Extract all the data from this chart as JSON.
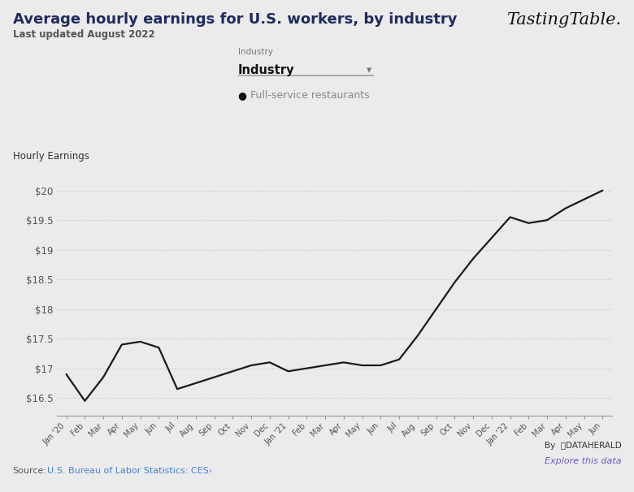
{
  "title": "Average hourly earnings for U.S. workers, by industry",
  "subtitle": "Last updated August 2022",
  "branding": "TastingTable.",
  "ylabel": "Hourly Earnings",
  "legend_label": "Full-service restaurants",
  "source_text": "Source:",
  "source_link": "U.S. Bureau of Labor Statistics: CES›",
  "industry_label": "Industry",
  "industry_value": "Industry",
  "background_color": "#ebebeb",
  "line_color": "#1a1a1a",
  "grid_color": "#c8c8c8",
  "x_labels": [
    "Jan '20",
    "Feb",
    "Mar",
    "Apr",
    "May",
    "Jun",
    "Jul",
    "Aug",
    "Sep",
    "Oct",
    "Nov",
    "Dec",
    "Jan '21",
    "Feb",
    "Mar",
    "Apr",
    "May",
    "Jun",
    "Jul",
    "Aug",
    "Sep",
    "Oct",
    "Nov",
    "Dec",
    "Jan '22",
    "Feb",
    "Mar",
    "Apr",
    "May",
    "Jun"
  ],
  "y_values": [
    16.9,
    16.45,
    16.85,
    17.4,
    17.45,
    17.35,
    16.65,
    16.75,
    16.85,
    16.95,
    17.05,
    17.1,
    16.95,
    17.0,
    17.05,
    17.1,
    17.05,
    17.05,
    17.15,
    17.55,
    18.0,
    18.45,
    18.85,
    19.2,
    19.55,
    19.45,
    19.5,
    19.7,
    19.85,
    20.0
  ],
  "ylim": [
    16.2,
    20.35
  ],
  "yticks": [
    16.5,
    17.0,
    17.5,
    18.0,
    18.5,
    19.0,
    19.5,
    20.0
  ],
  "ytick_labels": [
    "$16.5",
    "$17",
    "$17.5",
    "$18",
    "$18.5",
    "$19",
    "$19.5",
    "$20"
  ],
  "title_color": "#1e2b5e",
  "subtitle_color": "#3a3a3a",
  "tick_color": "#555555",
  "legend_text_color": "#888888",
  "source_color": "#4a7fd4",
  "dataherald_color": "#333333",
  "explore_color": "#6a5acd"
}
